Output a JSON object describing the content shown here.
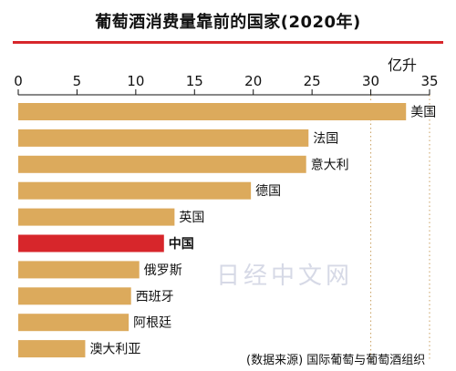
{
  "header": {
    "title": "葡萄酒消费量靠前的国家(2020年)"
  },
  "axis": {
    "unit_label": "亿升"
  },
  "watermark": "日经中文网",
  "source": "(数据来源) 国际葡萄与葡萄酒组织",
  "colors": {
    "bar": "#dcaa5c",
    "highlight": "#d7262b",
    "rule": "#d7262b"
  },
  "chart_data": {
    "type": "bar",
    "orientation": "horizontal",
    "title": "葡萄酒消费量靠前的国家(2020年)",
    "xlabel": "亿升",
    "ylabel": "",
    "xlim": [
      0,
      35
    ],
    "xticks": [
      0,
      5,
      10,
      15,
      20,
      25,
      30,
      35
    ],
    "categories": [
      "美国",
      "法国",
      "意大利",
      "德国",
      "英国",
      "中国",
      "俄罗斯",
      "西班牙",
      "阿根廷",
      "澳大利亚"
    ],
    "values": [
      33.0,
      24.7,
      24.5,
      19.8,
      13.3,
      12.4,
      10.3,
      9.6,
      9.4,
      5.7
    ],
    "highlight": "中国",
    "grid": "dotted vertical lines at 30 and 35",
    "legend": "none"
  }
}
